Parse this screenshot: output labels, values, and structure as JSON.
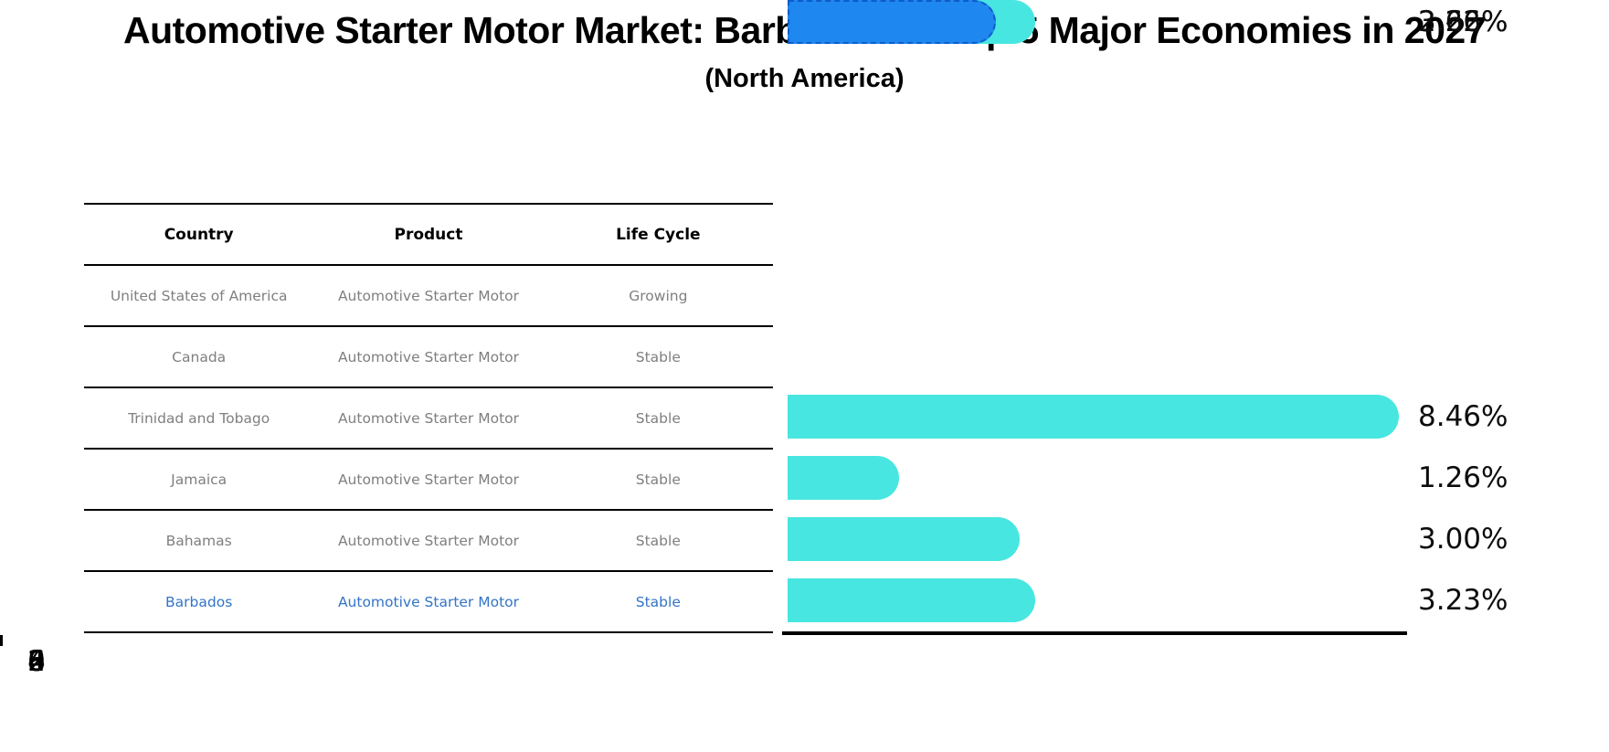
{
  "title": "Automotive Starter Motor Market: Barbados vs Top 5 Major Economies in 2027",
  "subtitle": "(North America)",
  "table": {
    "headers": [
      "Country",
      "Product",
      "Life Cycle"
    ],
    "rows": [
      {
        "country": "United States of America",
        "product": "Automotive Starter Motor",
        "life_cycle": "Growing",
        "highlight": false
      },
      {
        "country": "Canada",
        "product": "Automotive Starter Motor",
        "life_cycle": "Stable",
        "highlight": false
      },
      {
        "country": "Trinidad and Tobago",
        "product": "Automotive Starter Motor",
        "life_cycle": "Stable",
        "highlight": false
      },
      {
        "country": "Jamaica",
        "product": "Automotive Starter Motor",
        "life_cycle": "Stable",
        "highlight": false
      },
      {
        "country": "Bahamas",
        "product": "Automotive Starter Motor",
        "life_cycle": "Stable",
        "highlight": false
      },
      {
        "country": "Barbados",
        "product": "Automotive Starter Motor",
        "life_cycle": "Stable",
        "highlight": true
      }
    ]
  },
  "chart_data": {
    "type": "bar",
    "orientation": "horizontal",
    "title": "Automotive Starter Motor Market: Barbados vs Top 5 Major Economies in 2027 (North America)",
    "categories": [
      "United States of America",
      "Canada",
      "Trinidad and Tobago",
      "Jamaica",
      "Bahamas",
      "Barbados"
    ],
    "values": [
      8.46,
      1.26,
      3.0,
      3.23,
      3.22,
      2.66
    ],
    "value_labels": [
      "8.46%",
      "1.26%",
      "3.00%",
      "3.23%",
      "3.22%",
      "2.66%"
    ],
    "xlabel": "",
    "ylabel": "",
    "xlim": [
      0,
      8.9
    ],
    "x_ticks": [
      "0",
      "2",
      "4",
      "6",
      "8"
    ],
    "grid": false,
    "legend": false,
    "highlight_index": 5,
    "bar_color": "#48E6E0",
    "highlight_color": "#1E87F0",
    "highlight_text_color": "#3374C6"
  }
}
